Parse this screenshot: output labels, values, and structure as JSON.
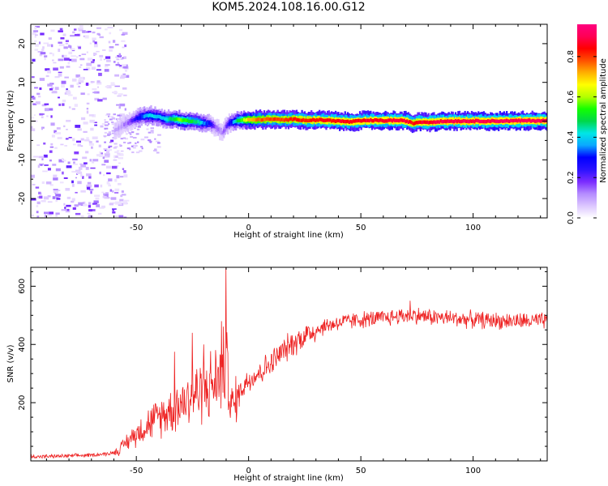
{
  "title": "KOM5.2024.108.16.00.G12",
  "colors": {
    "snr_line": "#ee2222",
    "colorbar_stops": [
      "#ffffff",
      "#dcc6ff",
      "#b48cff",
      "#7a2bff",
      "#2a12ff",
      "#0000ff",
      "#0aa8ff",
      "#00e6e6",
      "#00d84a",
      "#13ff00",
      "#b4ff00",
      "#ffff00",
      "#ffb000",
      "#ff5000",
      "#ff0000",
      "#ff0055",
      "#ff007f"
    ]
  },
  "chart_data": [
    {
      "type": "heatmap",
      "title": "KOM5.2024.108.16.00.G12",
      "xlabel": "Height of straight line (km)",
      "ylabel": "Frequency (Hz)",
      "xlim": [
        -97,
        133
      ],
      "ylim": [
        -25,
        25
      ],
      "x_ticks": [
        -50,
        0,
        50,
        100
      ],
      "y_ticks": [
        -20,
        -10,
        0,
        10,
        20
      ],
      "colorbar": {
        "label": "Normalized spectral amplitude",
        "range": [
          0,
          0.96
        ],
        "ticks": [
          "0.0",
          "0.2",
          "0.4",
          "0.6",
          "0.8"
        ],
        "tick_values": [
          0,
          0.2,
          0.4,
          0.6,
          0.8
        ]
      },
      "ridge_frequency_trace": {
        "x": [
          -60,
          -56,
          -52,
          -48,
          -44,
          -40,
          -37,
          -34,
          -31,
          -28,
          -25,
          -22,
          -20,
          -18,
          -16,
          -14,
          -12,
          -11,
          -10,
          -8,
          -6,
          -4,
          -2,
          0,
          5,
          10,
          15,
          20,
          25,
          30,
          35,
          40,
          45,
          50,
          55,
          60,
          65,
          70,
          73,
          76,
          80,
          85,
          90,
          100,
          110,
          120,
          133
        ],
        "y": [
          -2.5,
          -1.0,
          0.3,
          1.2,
          1.5,
          1.0,
          0.5,
          0.6,
          0.3,
          0.1,
          0.0,
          -0.3,
          -0.6,
          -0.6,
          -1.2,
          -2.0,
          -3.0,
          -2.0,
          -1.0,
          -0.3,
          0.0,
          0.2,
          0.3,
          0.3,
          0.4,
          0.5,
          0.3,
          0.5,
          0.2,
          0.3,
          0.2,
          0.0,
          -0.2,
          0.1,
          0.2,
          0.1,
          0.2,
          0.0,
          -0.6,
          -0.2,
          -0.3,
          -0.1,
          0.0,
          0.0,
          0.0,
          0.1,
          0.1
        ],
        "amplitude": [
          0.1,
          0.12,
          0.2,
          0.35,
          0.42,
          0.4,
          0.45,
          0.5,
          0.6,
          0.55,
          0.5,
          0.45,
          0.35,
          0.3,
          0.2,
          0.15,
          0.12,
          0.15,
          0.22,
          0.32,
          0.45,
          0.55,
          0.65,
          0.75,
          0.8,
          0.82,
          0.82,
          0.85,
          0.86,
          0.87,
          0.88,
          0.88,
          0.89,
          0.9,
          0.9,
          0.9,
          0.92,
          0.92,
          0.85,
          0.9,
          0.9,
          0.92,
          0.93,
          0.93,
          0.94,
          0.94,
          0.94
        ]
      }
    },
    {
      "type": "line",
      "xlabel": "Height of straight line (km)",
      "ylabel": "SNR (v/v)",
      "xlim": [
        -97,
        133
      ],
      "ylim": [
        0,
        665
      ],
      "x_ticks": [
        -50,
        0,
        50,
        100
      ],
      "y_ticks": [
        200,
        400,
        600
      ],
      "series": [
        {
          "x": [
            -97,
            -90,
            -80,
            -70,
            -62,
            -58,
            -55,
            -50,
            -45,
            -40,
            -35,
            -30,
            -25,
            -20,
            -15,
            -13,
            -11,
            -10,
            -9,
            -7,
            -5,
            -3,
            0,
            5,
            10,
            15,
            20,
            25,
            30,
            35,
            40,
            50,
            60,
            70,
            75,
            80,
            90,
            100,
            110,
            120,
            133
          ],
          "y": [
            15,
            15,
            17,
            20,
            25,
            35,
            60,
            95,
            125,
            150,
            175,
            200,
            225,
            245,
            270,
            290,
            320,
            330,
            260,
            180,
            220,
            250,
            280,
            305,
            335,
            375,
            405,
            430,
            450,
            465,
            475,
            485,
            490,
            500,
            500,
            495,
            490,
            485,
            482,
            480,
            480
          ]
        }
      ],
      "spikes": [
        {
          "x": -33,
          "y": 375
        },
        {
          "x": -25,
          "y": 440
        },
        {
          "x": -20,
          "y": 400
        },
        {
          "x": -12,
          "y": 480
        },
        {
          "x": -10,
          "y": 665
        },
        {
          "x": 72,
          "y": 550
        }
      ]
    }
  ]
}
